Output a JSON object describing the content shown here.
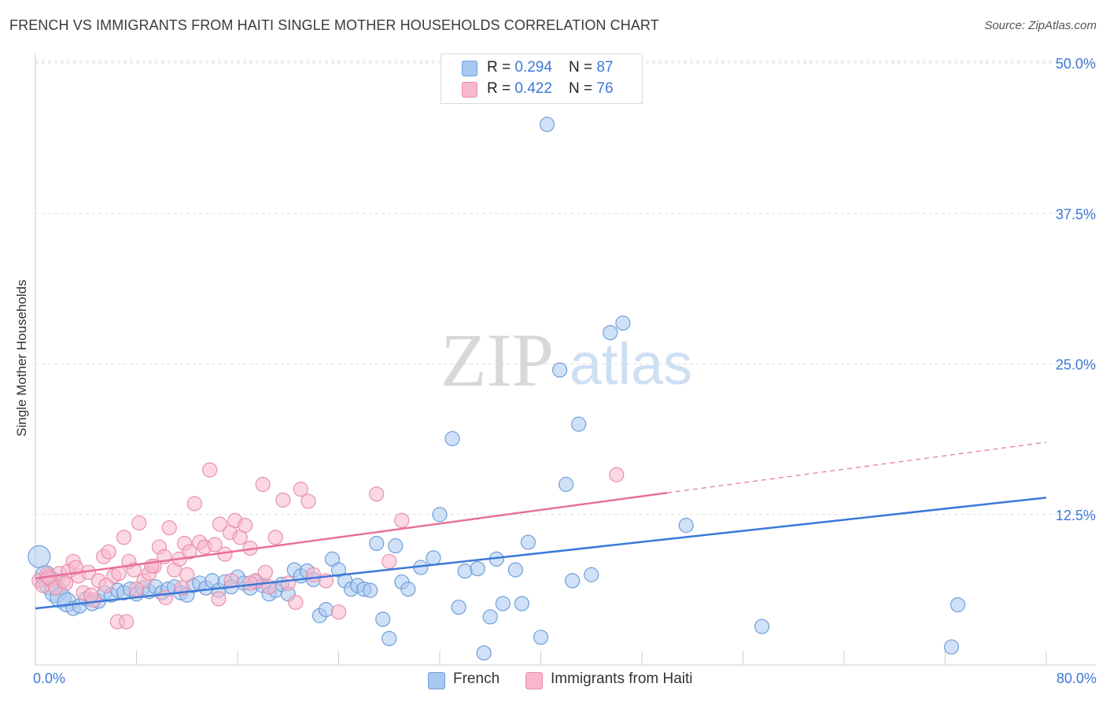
{
  "title": "FRENCH VS IMMIGRANTS FROM HAITI SINGLE MOTHER HOUSEHOLDS CORRELATION CHART",
  "source": "Source: ZipAtlas.com",
  "watermark": {
    "zip": "ZIP",
    "atlas": "atlas"
  },
  "stats": [
    {
      "r_label": "R = ",
      "r_value": "0.294",
      "n_label": "N = ",
      "n_value": "87",
      "color": "#a9c8f0"
    },
    {
      "r_label": "R = ",
      "r_value": "0.422",
      "n_label": "N = ",
      "n_value": "76",
      "color": "#f7b8cc"
    }
  ],
  "legend": [
    {
      "label": "French",
      "color": "#a9c8f0"
    },
    {
      "label": "Immigrants from Haiti",
      "color": "#f7b8cc"
    }
  ],
  "chart_data": {
    "type": "scatter",
    "ylabel": "Single Mother Households",
    "xlabel": "",
    "xlim": [
      0,
      80
    ],
    "ylim": [
      0,
      50
    ],
    "x_tick_labels": [
      "0.0%",
      "80.0%"
    ],
    "y_ticks": [
      12.5,
      25.0,
      37.5,
      50.0
    ],
    "y_tick_labels": [
      "12.5%",
      "25.0%",
      "37.5%",
      "50.0%"
    ],
    "grid": true,
    "series": [
      {
        "name": "French",
        "color": "#a9c8f0",
        "stroke": "#6f9fd8",
        "trend_color": "#3b78d8",
        "trend": {
          "x0": 0,
          "y0": 4.7,
          "x1": 80,
          "y1": 13.9
        },
        "points": [
          [
            0.3,
            9.0
          ],
          [
            0.8,
            7.4
          ],
          [
            1.2,
            6.8
          ],
          [
            1.6,
            6.1
          ],
          [
            2.0,
            5.6
          ],
          [
            2.5,
            5.2
          ],
          [
            3.0,
            4.7
          ],
          [
            3.5,
            4.9
          ],
          [
            4.0,
            5.5
          ],
          [
            4.5,
            5.1
          ],
          [
            5.0,
            5.3
          ],
          [
            5.5,
            6.0
          ],
          [
            6.0,
            5.8
          ],
          [
            6.5,
            6.2
          ],
          [
            7.0,
            6.0
          ],
          [
            7.5,
            6.3
          ],
          [
            8.0,
            5.9
          ],
          [
            8.5,
            6.4
          ],
          [
            9.0,
            6.1
          ],
          [
            9.5,
            6.5
          ],
          [
            10.0,
            6.0
          ],
          [
            10.5,
            6.3
          ],
          [
            11.0,
            6.5
          ],
          [
            11.5,
            6.0
          ],
          [
            12.0,
            5.8
          ],
          [
            12.5,
            6.6
          ],
          [
            13.0,
            6.8
          ],
          [
            13.5,
            6.4
          ],
          [
            14.0,
            7.0
          ],
          [
            14.5,
            6.2
          ],
          [
            15.0,
            6.9
          ],
          [
            15.5,
            6.5
          ],
          [
            16.0,
            7.3
          ],
          [
            16.5,
            6.8
          ],
          [
            17.0,
            6.4
          ],
          [
            17.5,
            6.9
          ],
          [
            18.0,
            6.6
          ],
          [
            18.5,
            5.9
          ],
          [
            19.0,
            6.2
          ],
          [
            19.5,
            6.7
          ],
          [
            20.0,
            5.9
          ],
          [
            20.5,
            7.9
          ],
          [
            21.0,
            7.4
          ],
          [
            21.5,
            7.8
          ],
          [
            22.0,
            7.1
          ],
          [
            22.5,
            4.1
          ],
          [
            23.0,
            4.6
          ],
          [
            23.5,
            8.8
          ],
          [
            24.0,
            7.9
          ],
          [
            24.5,
            7.0
          ],
          [
            25.0,
            6.3
          ],
          [
            25.5,
            6.6
          ],
          [
            26.0,
            6.3
          ],
          [
            26.5,
            6.2
          ],
          [
            27.0,
            10.1
          ],
          [
            27.5,
            3.8
          ],
          [
            28.0,
            2.2
          ],
          [
            28.5,
            9.9
          ],
          [
            29.0,
            6.9
          ],
          [
            29.5,
            6.3
          ],
          [
            30.5,
            8.1
          ],
          [
            31.5,
            8.9
          ],
          [
            32.0,
            12.5
          ],
          [
            33.0,
            18.8
          ],
          [
            33.5,
            4.8
          ],
          [
            34.0,
            7.8
          ],
          [
            35.0,
            8.0
          ],
          [
            35.5,
            1.0
          ],
          [
            36.0,
            4.0
          ],
          [
            36.5,
            8.8
          ],
          [
            37.0,
            5.1
          ],
          [
            38.0,
            7.9
          ],
          [
            38.5,
            5.1
          ],
          [
            39.0,
            10.2
          ],
          [
            40.0,
            2.3
          ],
          [
            40.5,
            44.9
          ],
          [
            41.5,
            24.5
          ],
          [
            42.0,
            15.0
          ],
          [
            43.0,
            20.0
          ],
          [
            42.5,
            7.0
          ],
          [
            44.0,
            7.5
          ],
          [
            45.5,
            27.6
          ],
          [
            46.5,
            28.4
          ],
          [
            51.5,
            11.6
          ],
          [
            57.5,
            3.2
          ],
          [
            73.0,
            5.0
          ],
          [
            72.5,
            1.5
          ]
        ],
        "sizes": {
          "0": 14,
          "1": 13,
          "2": 15,
          "3": 14,
          "4": 13,
          "5": 12
        }
      },
      {
        "name": "Immigrants from Haiti",
        "color": "#f7b8cc",
        "stroke": "#e890ab",
        "trend_color": "#e8709a",
        "trend": {
          "x0": 0,
          "y0": 7.2,
          "x1": 50,
          "y1": 14.3
        },
        "trend_dash": {
          "x0": 50,
          "y0": 14.3,
          "x1": 80,
          "y1": 18.5
        },
        "points": [
          [
            0.3,
            7.0
          ],
          [
            0.6,
            6.6
          ],
          [
            0.9,
            7.5
          ],
          [
            1.2,
            7.1
          ],
          [
            1.6,
            6.4
          ],
          [
            1.9,
            7.6
          ],
          [
            2.2,
            7.0
          ],
          [
            2.6,
            7.8
          ],
          [
            3.0,
            8.6
          ],
          [
            3.4,
            7.4
          ],
          [
            3.8,
            6.0
          ],
          [
            4.2,
            7.7
          ],
          [
            4.6,
            5.4
          ],
          [
            5.0,
            7.0
          ],
          [
            5.4,
            9.0
          ],
          [
            5.8,
            9.4
          ],
          [
            6.2,
            7.4
          ],
          [
            6.6,
            7.6
          ],
          [
            7.0,
            10.6
          ],
          [
            7.4,
            8.6
          ],
          [
            7.8,
            7.9
          ],
          [
            8.2,
            11.8
          ],
          [
            8.6,
            7.0
          ],
          [
            9.0,
            7.6
          ],
          [
            9.4,
            8.2
          ],
          [
            9.8,
            9.8
          ],
          [
            10.2,
            9.0
          ],
          [
            10.6,
            11.4
          ],
          [
            11.0,
            7.9
          ],
          [
            11.4,
            8.8
          ],
          [
            11.8,
            10.1
          ],
          [
            12.2,
            9.4
          ],
          [
            12.6,
            13.4
          ],
          [
            13.0,
            10.2
          ],
          [
            13.4,
            9.8
          ],
          [
            13.8,
            16.2
          ],
          [
            14.2,
            10.0
          ],
          [
            14.6,
            11.7
          ],
          [
            15.0,
            9.2
          ],
          [
            15.4,
            11.0
          ],
          [
            15.8,
            12.0
          ],
          [
            16.2,
            10.6
          ],
          [
            16.6,
            11.6
          ],
          [
            17.0,
            9.7
          ],
          [
            17.4,
            7.0
          ],
          [
            18.0,
            15.0
          ],
          [
            18.5,
            6.5
          ],
          [
            19.0,
            10.6
          ],
          [
            19.6,
            13.7
          ],
          [
            20.0,
            6.8
          ],
          [
            20.6,
            5.2
          ],
          [
            21.0,
            14.6
          ],
          [
            21.6,
            13.6
          ],
          [
            22.0,
            7.5
          ],
          [
            23.0,
            7.0
          ],
          [
            24.0,
            4.4
          ],
          [
            27.0,
            14.2
          ],
          [
            28.0,
            8.6
          ],
          [
            29.0,
            12.0
          ],
          [
            46.0,
            15.8
          ],
          [
            6.5,
            3.6
          ],
          [
            7.2,
            3.6
          ],
          [
            10.3,
            5.6
          ],
          [
            12.0,
            7.5
          ],
          [
            14.5,
            5.5
          ],
          [
            15.5,
            7.0
          ],
          [
            17.0,
            6.8
          ],
          [
            18.2,
            7.7
          ],
          [
            2.4,
            6.8
          ],
          [
            1.0,
            7.3
          ],
          [
            3.2,
            8.1
          ],
          [
            4.4,
            5.8
          ],
          [
            5.6,
            6.6
          ],
          [
            8.0,
            6.3
          ],
          [
            9.2,
            8.2
          ],
          [
            11.6,
            6.4
          ]
        ]
      }
    ]
  }
}
